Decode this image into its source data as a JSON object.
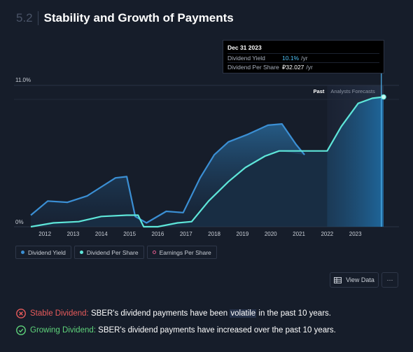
{
  "header": {
    "section_number": "5.2",
    "title": "Stability and Growth of Payments"
  },
  "tooltip": {
    "date": "Dec 31 2023",
    "rows": [
      {
        "label": "Dividend Yield",
        "value": "10.1%",
        "unit": "/yr"
      },
      {
        "label": "Dividend Per Share",
        "value": "₽32.027",
        "unit": "/yr"
      }
    ]
  },
  "chart_data": {
    "type": "area",
    "x_label_years": [
      "2012",
      "2013",
      "2014",
      "2015",
      "2016",
      "2017",
      "2018",
      "2019",
      "2020",
      "2021",
      "2022",
      "2023"
    ],
    "y_tick_labels": [
      "0%",
      "11.0%"
    ],
    "xlim": [
      2011.5,
      2024.0
    ],
    "ylim": [
      0,
      11.0
    ],
    "past_label": "Past",
    "forecast_label": "Analysts Forecasts",
    "forecast_start": 2022.0,
    "series": [
      {
        "name": "Dividend Yield",
        "color": "#3b8fd4",
        "points": [
          [
            2011.5,
            0.9
          ],
          [
            2012.1,
            2.0
          ],
          [
            2012.8,
            1.9
          ],
          [
            2013.5,
            2.4
          ],
          [
            2014.5,
            3.8
          ],
          [
            2014.9,
            3.9
          ],
          [
            2015.2,
            0.8
          ],
          [
            2015.6,
            0.3
          ],
          [
            2016.3,
            1.2
          ],
          [
            2016.9,
            1.1
          ],
          [
            2017.5,
            3.8
          ],
          [
            2018.0,
            5.6
          ],
          [
            2018.5,
            6.6
          ],
          [
            2019.2,
            7.2
          ],
          [
            2019.9,
            7.9
          ],
          [
            2020.4,
            8.0
          ],
          [
            2020.9,
            6.4
          ],
          [
            2021.2,
            5.6
          ]
        ]
      },
      {
        "name": "Dividend Per Share",
        "color": "#5ee6d9",
        "points": [
          [
            2011.5,
            0.0
          ],
          [
            2012.3,
            0.3
          ],
          [
            2013.2,
            0.4
          ],
          [
            2014.0,
            0.8
          ],
          [
            2014.9,
            0.9
          ],
          [
            2015.3,
            0.9
          ],
          [
            2015.5,
            0.0
          ],
          [
            2016.0,
            0.0
          ],
          [
            2016.7,
            0.3
          ],
          [
            2017.2,
            0.4
          ],
          [
            2017.8,
            2.0
          ],
          [
            2018.5,
            3.5
          ],
          [
            2019.1,
            4.6
          ],
          [
            2019.8,
            5.5
          ],
          [
            2020.3,
            5.9
          ],
          [
            2022.0,
            5.9
          ],
          [
            2022.5,
            7.8
          ],
          [
            2023.1,
            9.6
          ],
          [
            2023.6,
            10.0
          ],
          [
            2024.0,
            10.1
          ]
        ]
      }
    ],
    "hover_x": 2023.92,
    "legend_placement": "bottom-left"
  },
  "legend": {
    "items": [
      {
        "label": "Dividend Yield",
        "color": "#3b8fd4"
      },
      {
        "label": "Dividend Per Share",
        "color": "#5ee6d9"
      },
      {
        "label": "Earnings Per Share",
        "color": "#e05a8c"
      }
    ]
  },
  "buttons": {
    "view_data": "View Data",
    "more": "···"
  },
  "statuses": [
    {
      "label": "Stable Dividend:",
      "text_before": " SBER's dividend payments have been ",
      "highlight": "volatile",
      "text_after": " in the past 10 years."
    },
    {
      "label": "Growing Dividend:",
      "text_before": " SBER's dividend payments have increased over the past 10 years.",
      "highlight": "",
      "text_after": ""
    }
  ]
}
